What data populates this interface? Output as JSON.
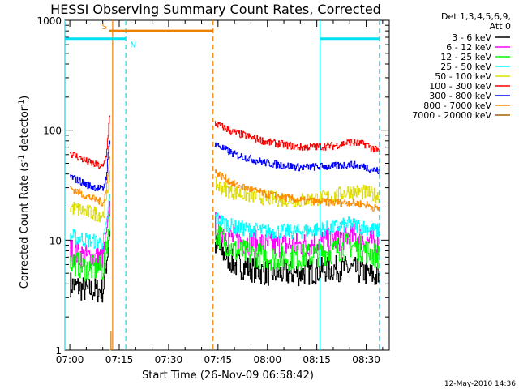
{
  "chart_data": {
    "type": "line",
    "title": "HESSI Observing Summary Count Rates, Corrected",
    "xlabel": "Start Time (26-Nov-09 06:58:42)",
    "ylabel_main": "Corrected Count Rate (s",
    "ylabel_sup1": "-1",
    "ylabel_mid": " detector",
    "ylabel_sup2": "-1",
    "ylabel_end": ")",
    "yscale": "log",
    "ylim": [
      1,
      1000
    ],
    "xlim_minutes": [
      -1.5,
      97
    ],
    "x_tick_labels": [
      "07:00",
      "07:15",
      "07:30",
      "07:45",
      "08:00",
      "08:15",
      "08:30"
    ],
    "x_tick_minutes": [
      0,
      15,
      30,
      45,
      60,
      75,
      90
    ],
    "y_tick_labels": [
      "1",
      "10",
      "100",
      "1000"
    ],
    "y_tick_values": [
      1,
      10,
      100,
      1000
    ],
    "legend_header": [
      "Det 1,3,4,5,6,9,",
      "Att 0"
    ],
    "legend_position": "right",
    "footer_date": "12-May-2010 14:36",
    "flags": {
      "S": {
        "label": "S",
        "color": "#f08000",
        "start": 12,
        "end": 43.5,
        "value": 800
      },
      "N": {
        "label": "N",
        "color": "#00e0f0"
      },
      "night_bars": [
        {
          "start": -1.5,
          "end": 17,
          "value": 680
        },
        {
          "start": 76,
          "end": 94,
          "value": 680
        }
      ]
    },
    "event_lines": [
      {
        "minute": -1.5,
        "style": "solid",
        "color": "#00e0f0"
      },
      {
        "minute": 17,
        "style": "dashed",
        "color": "#00e0f0"
      },
      {
        "minute": 13,
        "style": "solid",
        "color": "#f08000"
      },
      {
        "minute": 43.5,
        "style": "dashed",
        "color": "#f08000"
      },
      {
        "minute": 76,
        "style": "solid",
        "color": "#00e0f0"
      },
      {
        "minute": 94,
        "style": "dashed",
        "color": "#00e0f0"
      }
    ],
    "series": [
      {
        "name": "3 - 6 keV",
        "color": "#000000",
        "x": [
          0,
          5,
          10,
          11,
          12,
          44,
          50,
          60,
          70,
          80,
          85,
          90,
          94
        ],
        "y": [
          4,
          3.5,
          3.5,
          6,
          12,
          9,
          6,
          5,
          5,
          5.5,
          5.5,
          5,
          4.5
        ]
      },
      {
        "name": "6 - 12 keV",
        "color": "#ff00ff",
        "x": [
          0,
          5,
          10,
          11,
          12,
          44,
          50,
          60,
          70,
          80,
          85,
          90,
          94
        ],
        "y": [
          8,
          7,
          7,
          10,
          20,
          14,
          10,
          9,
          9,
          10,
          11,
          10,
          9
        ]
      },
      {
        "name": "12 - 25 keV",
        "color": "#00ff00",
        "x": [
          0,
          5,
          10,
          11,
          12,
          44,
          50,
          60,
          70,
          80,
          85,
          90,
          94
        ],
        "y": [
          6.5,
          5.5,
          5.5,
          8,
          17,
          12,
          8,
          7,
          7,
          8,
          9,
          8,
          7
        ]
      },
      {
        "name": "25 - 50 keV",
        "color": "#00ffff",
        "x": [
          0,
          5,
          10,
          11,
          12,
          44,
          50,
          60,
          70,
          80,
          85,
          90,
          94
        ],
        "y": [
          11,
          10,
          9.5,
          13,
          24,
          16,
          13,
          12,
          12,
          13,
          14,
          13,
          12
        ]
      },
      {
        "name": "50 - 100 keV",
        "color": "#dddd00",
        "x": [
          0,
          5,
          10,
          11,
          12,
          44,
          50,
          60,
          70,
          80,
          85,
          90,
          94
        ],
        "y": [
          20,
          18,
          17,
          22,
          40,
          32,
          27,
          24,
          23,
          25,
          28,
          27,
          25
        ]
      },
      {
        "name": "100 - 300 keV",
        "color": "#ff0000",
        "x": [
          0,
          5,
          10,
          11,
          12,
          44,
          50,
          60,
          70,
          80,
          85,
          90,
          94
        ],
        "y": [
          62,
          52,
          46,
          60,
          130,
          115,
          95,
          78,
          70,
          72,
          78,
          74,
          63
        ]
      },
      {
        "name": "300 - 800 keV",
        "color": "#0000ff",
        "x": [
          0,
          5,
          10,
          11,
          12,
          44,
          50,
          60,
          70,
          80,
          85,
          90,
          94
        ],
        "y": [
          38,
          32,
          29,
          38,
          80,
          75,
          60,
          50,
          46,
          47,
          49,
          46,
          42
        ]
      },
      {
        "name": "800 - 7000 keV",
        "color": "#ff8c00",
        "x": [
          0,
          5,
          10,
          11,
          12,
          44,
          50,
          60,
          70,
          80,
          85,
          90,
          94
        ],
        "y": [
          30,
          25,
          22,
          28,
          60,
          42,
          32,
          26,
          23,
          22,
          22,
          21,
          19
        ]
      },
      {
        "name": "7000 - 20000 keV",
        "color": "#a06400",
        "x": [
          12,
          12.5
        ],
        "y": [
          1,
          1.5
        ]
      }
    ]
  }
}
